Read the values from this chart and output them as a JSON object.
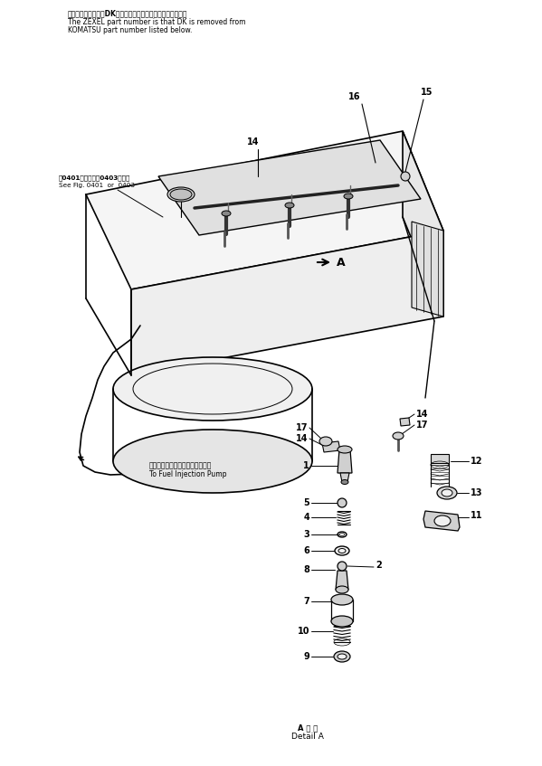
{
  "bg_color": "#ffffff",
  "fig_width": 5.99,
  "fig_height": 8.47,
  "title_jp": "品番のメーカー記号DKを除いたものがゼクセルの品番です。",
  "title_en1": "The ZEXEL part number is that DK is removed from",
  "title_en2": "KOMATSU part number listed below.",
  "note_jp": "図0401図または図0403図参照",
  "note_en": "See Fig. 0401  or  0403",
  "fuel_pump_jp": "フェルインジェクションポンプへ",
  "fuel_pump_en": "To Fuel Injection Pump",
  "detail_jp": "A 詳 細",
  "detail_en": "Detail A",
  "lw_main": 1.0,
  "lw_thin": 0.6,
  "lw_thick": 1.5
}
